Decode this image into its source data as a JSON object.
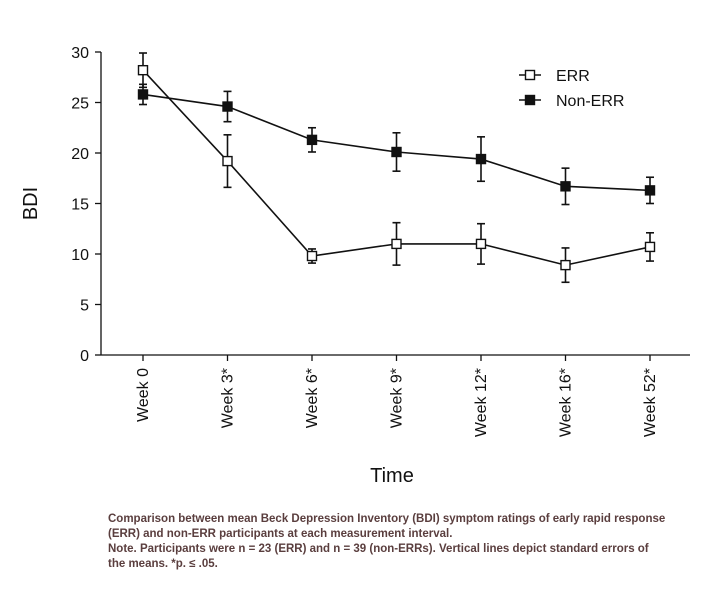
{
  "chart_data": {
    "type": "line",
    "categories": [
      "Week 0",
      "Week 3*",
      "Week 6*",
      "Week 9*",
      "Week 12*",
      "Week 16*",
      "Week 52*"
    ],
    "series": [
      {
        "name": "ERR",
        "marker": "open-square",
        "values": [
          28.2,
          19.2,
          9.8,
          11.0,
          11.0,
          8.9,
          10.7
        ],
        "error": [
          1.7,
          2.6,
          0.7,
          2.1,
          2.0,
          1.7,
          1.4
        ]
      },
      {
        "name": "Non-ERR",
        "marker": "filled-square",
        "values": [
          25.8,
          24.6,
          21.3,
          20.1,
          19.4,
          16.7,
          16.3
        ],
        "error": [
          1.0,
          1.5,
          1.2,
          1.9,
          2.2,
          1.8,
          1.3
        ]
      }
    ],
    "xlabel": "Time",
    "ylabel": "BDI",
    "ylim": [
      0,
      30
    ],
    "yticks": [
      0,
      5,
      10,
      15,
      20,
      25,
      30
    ],
    "grid": false,
    "legend": "top-right",
    "colors": {
      "line": "#111111",
      "marker_fill_open": "#ffffff",
      "marker_fill_filled": "#111111"
    }
  },
  "caption": {
    "line1": "Comparison between mean Beck Depression Inventory (BDI) symptom ratings of early rapid response (ERR) and non-ERR participants at each measurement interval.",
    "line2": "Note. Participants were n = 23 (ERR) and n = 39 (non-ERRs). Vertical lines depict standard errors of the means. *p. ≤ .05."
  }
}
